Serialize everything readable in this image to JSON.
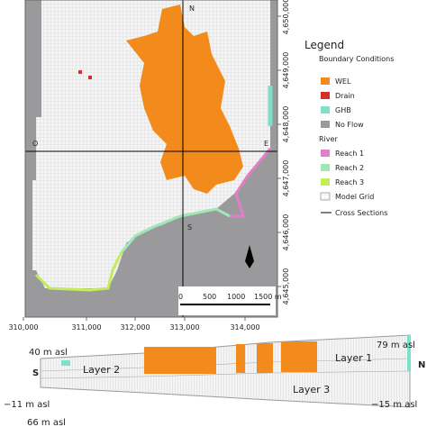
{
  "map": {
    "legend": {
      "title": "Legend",
      "subtitle": "Boundary Conditions",
      "items": [
        "WEL",
        "Drain",
        "GHB",
        "No Flow"
      ],
      "river_title": "River",
      "river_items": [
        "Reach 1",
        "Reach 2",
        "Reach 3"
      ],
      "grid": "Model Grid",
      "sections": "Cross Sections"
    },
    "xticks": [
      "310,000",
      "311,000",
      "312,000",
      "313,000",
      "314,000"
    ],
    "yticks": [
      "4,650,000",
      "4,649,000",
      "4,648,000",
      "4,647,000",
      "4,646,000",
      "4,645,000"
    ],
    "section_labels": {
      "west": "O",
      "east": "E",
      "south": "S",
      "north": "N"
    },
    "scale": [
      "0",
      "500",
      "1000",
      "1500 m"
    ]
  },
  "cross_section": {
    "left_top": "40 m asl",
    "left_end": "S",
    "layer2": "Layer 2",
    "left_bottom": "−11 m asl",
    "right_top": "79 m asl",
    "layer1": "Layer 1",
    "right_end": "N",
    "layer3": "Layer 3",
    "right_bottom": "−15 m asl",
    "below": "66 m asl"
  }
}
